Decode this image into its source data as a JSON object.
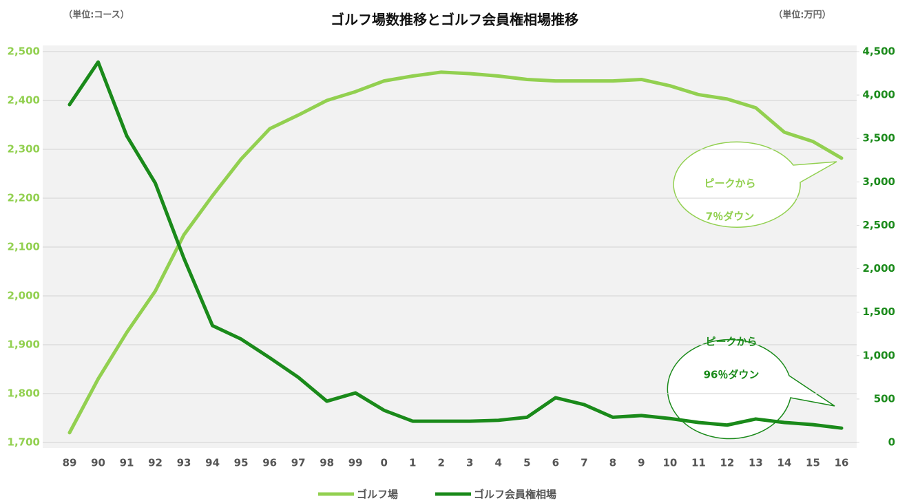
{
  "chart_data": {
    "type": "line",
    "title": "ゴルフ場数推移とゴルフ会員権相場推移",
    "left_unit": "（単位:コース）",
    "right_unit": "（単位:万円）",
    "categories": [
      "89",
      "90",
      "91",
      "92",
      "93",
      "94",
      "95",
      "96",
      "97",
      "98",
      "99",
      "0",
      "1",
      "2",
      "3",
      "4",
      "5",
      "6",
      "7",
      "8",
      "9",
      "10",
      "11",
      "12",
      "13",
      "14",
      "15",
      "16"
    ],
    "series": [
      {
        "name": "ゴルフ場",
        "color": "#92d050",
        "values": [
          1720,
          1830,
          1925,
          2010,
          2125,
          2205,
          2280,
          2342,
          2370,
          2400,
          2418,
          2440,
          2450,
          2458,
          2455,
          2450,
          2443,
          2440,
          2440,
          2440,
          2443,
          2430,
          2412,
          2403,
          2385,
          2335,
          2316,
          2282
        ]
      },
      {
        "name": "ゴルフ会員権相場",
        "color": "#1a8a1a",
        "axis": "y2",
        "values": [
          3890,
          4380,
          3530,
          2985,
          2120,
          1345,
          1190,
          975,
          750,
          475,
          570,
          370,
          245,
          245,
          245,
          255,
          290,
          515,
          435,
          290,
          310,
          275,
          230,
          200,
          270,
          230,
          205,
          165
        ]
      }
    ],
    "ylim": [
      1700,
      2500
    ],
    "yticks": [
      {
        "value": 1700,
        "label": "1,700"
      },
      {
        "value": 1800,
        "label": "1,800"
      },
      {
        "value": 1900,
        "label": "1,900"
      },
      {
        "value": 2000,
        "label": "2,000"
      },
      {
        "value": 2100,
        "label": "2,100"
      },
      {
        "value": 2200,
        "label": "2,200"
      },
      {
        "value": 2300,
        "label": "2,300"
      },
      {
        "value": 2400,
        "label": "2,400"
      },
      {
        "value": 2500,
        "label": "2,500"
      }
    ],
    "y2lim": [
      0,
      4500
    ],
    "y2ticks": [
      0,
      500,
      {
        "value": 1000,
        "label": "1,000"
      },
      {
        "value": 1500,
        "label": "1,500"
      },
      {
        "value": 2000,
        "label": "2,000"
      },
      {
        "value": 2500,
        "label": "2,500"
      },
      {
        "value": 3000,
        "label": "3,000"
      },
      {
        "value": 3500,
        "label": "3,500"
      },
      {
        "value": 4000,
        "label": "4,000"
      },
      {
        "value": 4500,
        "label": "4,500"
      }
    ],
    "grid": true,
    "legend": "bottom",
    "annotations": [
      {
        "lines": [
          "ピークから",
          "7％ダウン"
        ]
      },
      {
        "lines": [
          "ピークから",
          "96％ダウン"
        ]
      }
    ]
  }
}
